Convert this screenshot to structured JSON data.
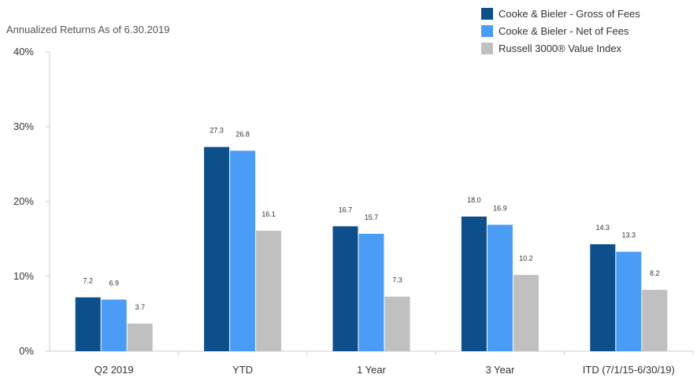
{
  "chart_data": {
    "type": "bar",
    "subtitle": "Annualized Returns As of 6.30.2019",
    "categories": [
      "Q2 2019",
      "YTD",
      "1 Year",
      "3 Year",
      "ITD (7/1/15-6/30/19)"
    ],
    "series": [
      {
        "name": "Cooke & Bieler - Gross of Fees",
        "color": "#0d4f8b",
        "values": [
          7.2,
          27.3,
          16.7,
          18.0,
          14.3
        ],
        "labels": [
          "7.2",
          "27.3",
          "16.7",
          "18.0",
          "14.3"
        ]
      },
      {
        "name": "Cooke & Bieler - Net of Fees",
        "color": "#4a9cf5",
        "values": [
          6.9,
          26.8,
          15.7,
          16.9,
          13.3
        ],
        "labels": [
          "6.9",
          "26.8",
          "15.7",
          "16.9",
          "13.3"
        ]
      },
      {
        "name": "Russell 3000® Value Index",
        "color": "#c0c0c0",
        "values": [
          3.7,
          16.1,
          7.3,
          10.2,
          8.2
        ],
        "labels": [
          "3.7",
          "16.1",
          "7.3",
          "10.2",
          "8.2"
        ]
      }
    ],
    "ylim": [
      0,
      40
    ],
    "yticks": [
      0,
      10,
      20,
      30,
      40
    ],
    "ytick_labels": [
      "0%",
      "10%",
      "20%",
      "30%",
      "40%"
    ],
    "grid": false,
    "legend_position": "top-right"
  }
}
